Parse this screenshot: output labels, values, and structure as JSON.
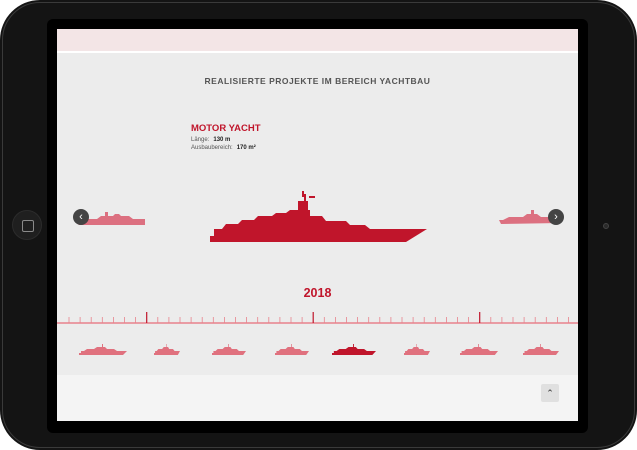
{
  "page": {
    "heading": "REALISIERTE PROJEKTE IM BEREICH YACHTBAU"
  },
  "project": {
    "type": "MOTOR YACHT",
    "length_label": "Länge:",
    "length_value": "130 m",
    "area_label": "Ausbaubereich:",
    "area_value": "170 m²",
    "year": "2018"
  },
  "icons": {
    "prev": "chevron-left-icon",
    "next": "chevron-right-icon",
    "up": "chevron-up-icon"
  },
  "colors": {
    "accent": "#c0152b",
    "accent_light": "#e0717e",
    "timeline_line": "#e8828c"
  },
  "thumbnails": {
    "count": 8,
    "active_index": 4
  }
}
